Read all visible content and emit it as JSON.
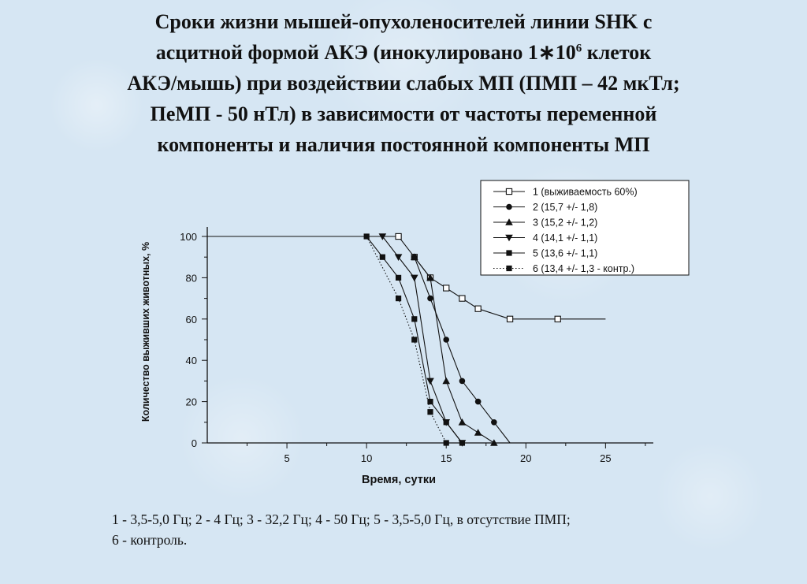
{
  "title": {
    "line1": "Сроки жизни мышей-опухоленосителей линии SHK с",
    "line2_a": "асцитной формой АКЭ (инокулировано 1",
    "line2_mult": "∗",
    "line2_base": "10",
    "line2_sup": "6",
    "line2_b": " клеток",
    "line3": "АКЭ/мышь) при воздействии слабых МП (ПМП – 42 мкТл;",
    "line4": "ПеМП - 50 нТл) в зависимости от частоты переменной",
    "line5": "компоненты и наличия постоянной компоненты МП"
  },
  "caption": {
    "line1": "1 - 3,5-5,0 Гц; 2 - 4 Гц; 3 - 32,2 Гц; 4 - 50 Гц; 5 - 3,5-5,0 Гц, в отсутствие ПМП;",
    "line2": "6 - контроль."
  },
  "chart_data": {
    "type": "line",
    "xlabel": "Время, сутки",
    "ylabel": "Количество выживших животных, %",
    "xlim": [
      0,
      28
    ],
    "ylim": [
      0,
      100
    ],
    "x_ticks": [
      5,
      10,
      15,
      20,
      25
    ],
    "y_ticks": [
      0,
      20,
      40,
      60,
      80,
      100
    ],
    "grid": false,
    "legend_position": "top-right",
    "line_color": "#111111",
    "series": [
      {
        "name": "1 (выживаемость 60%)",
        "marker": "open-square",
        "line": "solid",
        "points": [
          [
            0,
            100
          ],
          [
            12,
            100
          ],
          [
            13,
            90
          ],
          [
            14,
            80
          ],
          [
            15,
            75
          ],
          [
            16,
            70
          ],
          [
            17,
            65
          ],
          [
            19,
            60
          ],
          [
            22,
            60
          ],
          [
            25,
            60
          ]
        ],
        "marker_x": [
          12,
          13,
          14,
          15,
          16,
          17,
          19,
          22
        ]
      },
      {
        "name": "2 (15,7 +/- 1,8)",
        "marker": "circle",
        "line": "solid",
        "points": [
          [
            13,
            90
          ],
          [
            14,
            70
          ],
          [
            15,
            50
          ],
          [
            16,
            30
          ],
          [
            17,
            20
          ],
          [
            18,
            10
          ],
          [
            19,
            0
          ]
        ],
        "marker_x": [
          13,
          14,
          15,
          16,
          17,
          18
        ]
      },
      {
        "name": "3 (15,2 +/- 1,2)",
        "marker": "triangle-up",
        "line": "solid",
        "points": [
          [
            13,
            90
          ],
          [
            14,
            80
          ],
          [
            15,
            30
          ],
          [
            16,
            10
          ],
          [
            17,
            5
          ],
          [
            18,
            0
          ]
        ],
        "marker_x": [
          13,
          14,
          15,
          16,
          17,
          18
        ]
      },
      {
        "name": "4 (14,1 +/- 1,1)",
        "marker": "triangle-down",
        "line": "solid",
        "points": [
          [
            11,
            100
          ],
          [
            12,
            90
          ],
          [
            13,
            80
          ],
          [
            14,
            30
          ],
          [
            15,
            10
          ],
          [
            16,
            0
          ]
        ],
        "marker_x": [
          11,
          12,
          13,
          14,
          15,
          16
        ]
      },
      {
        "name": "5 (13,6 +/- 1,1)",
        "marker": "filled-square",
        "line": "solid",
        "points": [
          [
            10,
            100
          ],
          [
            11,
            90
          ],
          [
            12,
            80
          ],
          [
            13,
            60
          ],
          [
            14,
            20
          ],
          [
            15,
            10
          ],
          [
            16,
            0
          ]
        ],
        "marker_x": [
          10,
          11,
          12,
          13,
          14,
          15,
          16
        ]
      },
      {
        "name": "6 (13,4 +/- 1,3 - контр.)",
        "marker": "filled-square",
        "line": "dotted",
        "points": [
          [
            10,
            100
          ],
          [
            12,
            70
          ],
          [
            13,
            50
          ],
          [
            14,
            15
          ],
          [
            15,
            0
          ]
        ],
        "marker_x": [
          12,
          13,
          14,
          15
        ]
      }
    ]
  }
}
